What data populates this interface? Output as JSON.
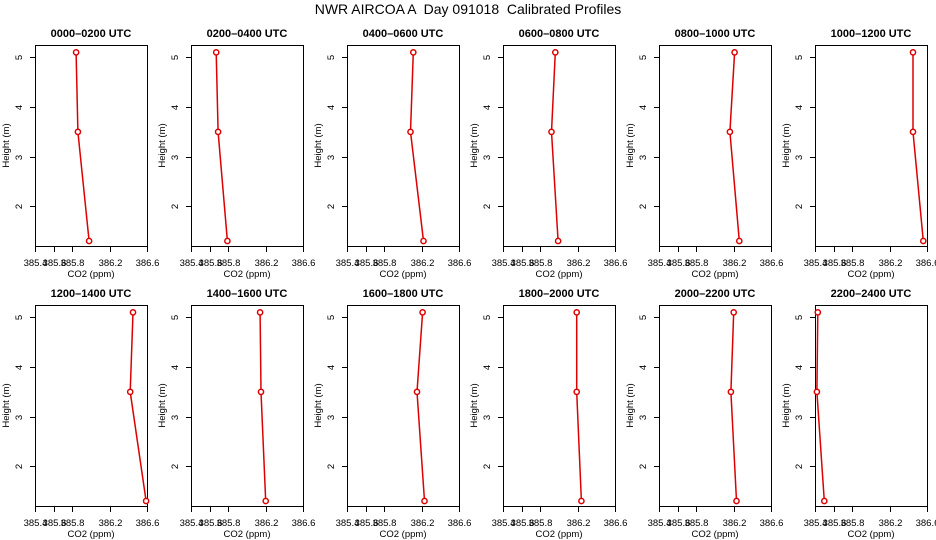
{
  "title": "NWR AIRCOA A  Day 091018  Calibrated Profiles",
  "colors": {
    "series": "#dd0000",
    "axis": "#000000"
  },
  "chart_data": [
    {
      "type": "line",
      "title": "0000–0200 UTC",
      "xlabel": "CO2 (ppm)",
      "ylabel": "Height (m)",
      "xlim": [
        385.4,
        386.6
      ],
      "ylim": [
        1.2,
        5.25
      ],
      "xticks": [
        "385.4",
        "385.6",
        "385.8",
        "386.2",
        "386.6"
      ],
      "yticks": [
        "2",
        "3",
        "4",
        "5"
      ],
      "x": [
        385.84,
        385.86,
        385.98
      ],
      "y": [
        5.1,
        3.5,
        1.3
      ]
    },
    {
      "type": "line",
      "title": "0200–0400 UTC",
      "xlabel": "CO2 (ppm)",
      "ylabel": "Height (m)",
      "xlim": [
        385.4,
        386.6
      ],
      "ylim": [
        1.2,
        5.25
      ],
      "xticks": [
        "385.4",
        "385.6",
        "385.8",
        "386.2",
        "386.6"
      ],
      "yticks": [
        "2",
        "3",
        "4",
        "5"
      ],
      "x": [
        385.67,
        385.69,
        385.79
      ],
      "y": [
        5.1,
        3.5,
        1.3
      ]
    },
    {
      "type": "line",
      "title": "0400–0600 UTC",
      "xlabel": "CO2 (ppm)",
      "ylabel": "Height (m)",
      "xlim": [
        385.4,
        386.6
      ],
      "ylim": [
        1.2,
        5.25
      ],
      "xticks": [
        "385.4",
        "385.6",
        "385.8",
        "386.2",
        "386.6"
      ],
      "yticks": [
        "2",
        "3",
        "4",
        "5"
      ],
      "x": [
        386.11,
        386.08,
        386.22
      ],
      "y": [
        5.1,
        3.5,
        1.3
      ]
    },
    {
      "type": "line",
      "title": "0600–0800 UTC",
      "xlabel": "CO2 (ppm)",
      "ylabel": "Height (m)",
      "xlim": [
        385.4,
        386.6
      ],
      "ylim": [
        1.2,
        5.25
      ],
      "xticks": [
        "385.4",
        "385.6",
        "385.8",
        "386.2",
        "386.6"
      ],
      "yticks": [
        "2",
        "3",
        "4",
        "5"
      ],
      "x": [
        385.96,
        385.92,
        385.99
      ],
      "y": [
        5.1,
        3.5,
        1.3
      ]
    },
    {
      "type": "line",
      "title": "0800–1000 UTC",
      "xlabel": "CO2 (ppm)",
      "ylabel": "Height (m)",
      "xlim": [
        385.4,
        386.6
      ],
      "ylim": [
        1.2,
        5.25
      ],
      "xticks": [
        "385.4",
        "385.6",
        "385.8",
        "386.2",
        "386.6"
      ],
      "yticks": [
        "2",
        "3",
        "4",
        "5"
      ],
      "x": [
        386.21,
        386.16,
        386.26
      ],
      "y": [
        5.1,
        3.5,
        1.3
      ]
    },
    {
      "type": "line",
      "title": "1000–1200 UTC",
      "xlabel": "CO2 (ppm)",
      "ylabel": "Height (m)",
      "xlim": [
        385.4,
        386.6
      ],
      "ylim": [
        1.2,
        5.25
      ],
      "xticks": [
        "385.4",
        "385.6",
        "385.8",
        "386.2",
        "386.6"
      ],
      "yticks": [
        "2",
        "3",
        "4",
        "5"
      ],
      "x": [
        386.45,
        386.45,
        386.56
      ],
      "y": [
        5.1,
        3.5,
        1.3
      ]
    },
    {
      "type": "line",
      "title": "1200–1400 UTC",
      "xlabel": "CO2 (ppm)",
      "ylabel": "Height (m)",
      "xlim": [
        385.4,
        386.6
      ],
      "ylim": [
        1.2,
        5.25
      ],
      "xticks": [
        "385.4",
        "385.6",
        "385.8",
        "386.2",
        "386.6"
      ],
      "yticks": [
        "2",
        "3",
        "4",
        "5"
      ],
      "x": [
        386.45,
        386.42,
        386.59
      ],
      "y": [
        5.1,
        3.5,
        1.3
      ]
    },
    {
      "type": "line",
      "title": "1400–1600 UTC",
      "xlabel": "CO2 (ppm)",
      "ylabel": "Height (m)",
      "xlim": [
        385.4,
        386.6
      ],
      "ylim": [
        1.2,
        5.25
      ],
      "xticks": [
        "385.4",
        "385.6",
        "385.8",
        "386.2",
        "386.6"
      ],
      "yticks": [
        "2",
        "3",
        "4",
        "5"
      ],
      "x": [
        386.14,
        386.15,
        386.2
      ],
      "y": [
        5.1,
        3.5,
        1.3
      ]
    },
    {
      "type": "line",
      "title": "1600–1800 UTC",
      "xlabel": "CO2 (ppm)",
      "ylabel": "Height (m)",
      "xlim": [
        385.4,
        386.6
      ],
      "ylim": [
        1.2,
        5.25
      ],
      "xticks": [
        "385.4",
        "385.6",
        "385.8",
        "386.2",
        "386.6"
      ],
      "yticks": [
        "2",
        "3",
        "4",
        "5"
      ],
      "x": [
        386.21,
        386.15,
        386.23
      ],
      "y": [
        5.1,
        3.5,
        1.3
      ]
    },
    {
      "type": "line",
      "title": "1800–2000 UTC",
      "xlabel": "CO2 (ppm)",
      "ylabel": "Height (m)",
      "xlim": [
        385.4,
        386.6
      ],
      "ylim": [
        1.2,
        5.25
      ],
      "xticks": [
        "385.4",
        "385.6",
        "385.8",
        "386.2",
        "386.6"
      ],
      "yticks": [
        "2",
        "3",
        "4",
        "5"
      ],
      "x": [
        386.19,
        386.19,
        386.24
      ],
      "y": [
        5.1,
        3.5,
        1.3
      ]
    },
    {
      "type": "line",
      "title": "2000–2200 UTC",
      "xlabel": "CO2 (ppm)",
      "ylabel": "Height (m)",
      "xlim": [
        385.4,
        386.6
      ],
      "ylim": [
        1.2,
        5.25
      ],
      "xticks": [
        "385.4",
        "385.6",
        "385.8",
        "386.2",
        "386.6"
      ],
      "yticks": [
        "2",
        "3",
        "4",
        "5"
      ],
      "x": [
        386.2,
        386.17,
        386.23
      ],
      "y": [
        5.1,
        3.5,
        1.3
      ]
    },
    {
      "type": "line",
      "title": "2200–2400 UTC",
      "xlabel": "CO2 (ppm)",
      "ylabel": "Height (m)",
      "xlim": [
        385.4,
        386.6
      ],
      "ylim": [
        1.2,
        5.25
      ],
      "xticks": [
        "385.4",
        "385.6",
        "385.8",
        "386.2",
        "386.6"
      ],
      "yticks": [
        "2",
        "3",
        "4",
        "5"
      ],
      "x": [
        385.43,
        385.42,
        385.5
      ],
      "y": [
        5.1,
        3.5,
        1.3
      ]
    }
  ]
}
